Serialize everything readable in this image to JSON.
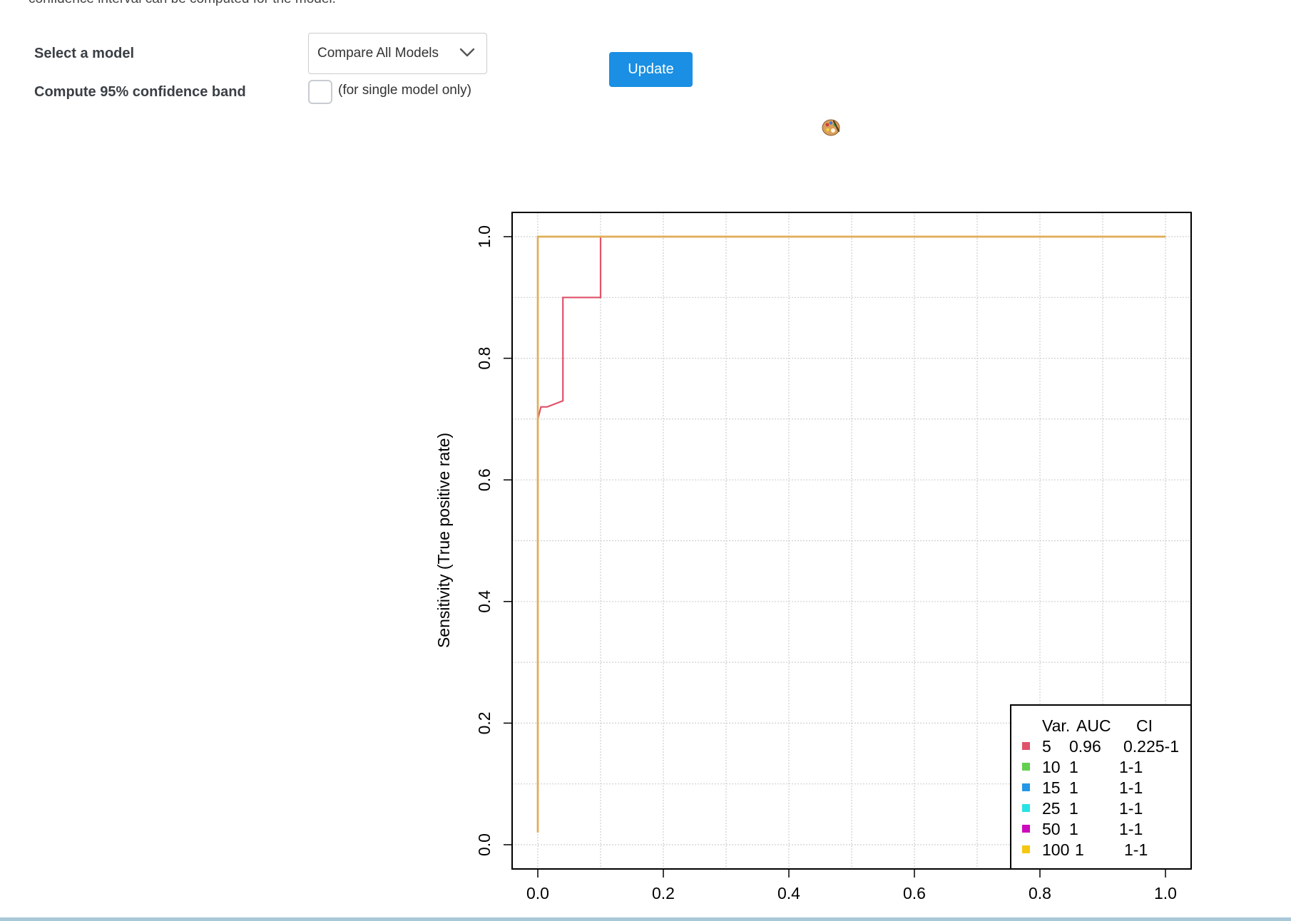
{
  "intro_text": "confidence interval can be computed for the model.",
  "form": {
    "model_label": "Select a model",
    "model_selected": "Compare All Models",
    "band_label": "Compute 95% confidence band",
    "band_checked": false,
    "band_note": "(for single model only)",
    "update_label": "Update"
  },
  "icons": {
    "chevron": "chevron-down-icon",
    "palette": "palette-icon"
  },
  "chart_data": {
    "type": "line",
    "title": "",
    "xlabel": "",
    "ylabel": "Sensitivity (True positive rate)",
    "xlim": [
      0,
      1
    ],
    "ylim": [
      0,
      1
    ],
    "x_ticks": [
      "0.0",
      "0.2",
      "0.4",
      "0.6",
      "0.8",
      "1.0"
    ],
    "y_ticks": [
      "0.0",
      "0.2",
      "0.4",
      "0.6",
      "0.8",
      "1.0"
    ],
    "grid": true,
    "legend_position": "bottom-right",
    "legend_header": [
      "Var.",
      "AUC",
      "CI"
    ],
    "series": [
      {
        "name": "5",
        "auc": "0.96",
        "ci": "0.225-1",
        "color": "#DF536B",
        "x": [
          0,
          0,
          0.005,
          0.015,
          0.04,
          0.04,
          0.1,
          0.1,
          1.0
        ],
        "y": [
          0.02,
          0.7,
          0.72,
          0.72,
          0.73,
          0.9,
          0.9,
          1.0,
          1.0
        ]
      },
      {
        "name": "10",
        "auc": "1",
        "ci": "1-1",
        "color": "#61D04F",
        "x": [
          0,
          0,
          1.0
        ],
        "y": [
          0.02,
          1.0,
          1.0
        ]
      },
      {
        "name": "15",
        "auc": "1",
        "ci": "1-1",
        "color": "#2297E6",
        "x": [
          0,
          0,
          1.0
        ],
        "y": [
          0.02,
          1.0,
          1.0
        ]
      },
      {
        "name": "25",
        "auc": "1",
        "ci": "1-1",
        "color": "#28E2E5",
        "x": [
          0,
          0,
          1.0
        ],
        "y": [
          0.02,
          1.0,
          1.0
        ]
      },
      {
        "name": "50",
        "auc": "1",
        "ci": "1-1",
        "color": "#CD0BBC",
        "x": [
          0,
          0,
          1.0
        ],
        "y": [
          0.02,
          1.0,
          1.0
        ]
      },
      {
        "name": "100",
        "auc": "1",
        "ci": "1-1",
        "color": "#F5C710",
        "x": [
          0,
          0,
          1.0
        ],
        "y": [
          0.02,
          1.0,
          1.0
        ]
      }
    ],
    "visible_line_color": "#E0AE5A"
  }
}
